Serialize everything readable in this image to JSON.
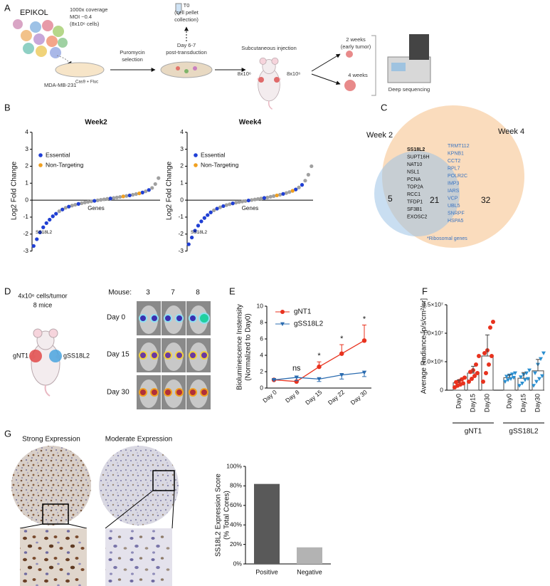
{
  "panel_labels": [
    "A",
    "B",
    "C",
    "D",
    "E",
    "F",
    "G"
  ],
  "panel_a": {
    "library": "EPIKOL",
    "coverage": [
      "1000x coverage",
      "MOI ~0.4",
      "(8x10⁶ cells)"
    ],
    "cell_line": "MDA-MB-231",
    "cell_line_sup": "Cas9 + Fluc",
    "selection": [
      "Puromycin",
      "selection"
    ],
    "t0": [
      "T0",
      "(cell pellet",
      "collection)"
    ],
    "day": [
      "Day 6-7",
      "post-transduction"
    ],
    "injection": "Subcutaneous injection",
    "cells": [
      "8x10⁶",
      "8x10⁶"
    ],
    "early": [
      "2 weeks",
      "(early tumor)"
    ],
    "late": "4 weeks",
    "sequencing": "Deep sequencing"
  },
  "panel_c": {
    "sets": [
      "Week 2",
      "Week 4"
    ],
    "counts": [
      5,
      21,
      32
    ],
    "shared_genes": [
      "SS18L2",
      "SUPT16H",
      "NAT10",
      "NSL1",
      "PCNA",
      "TOP2A",
      "RCC1",
      "TFDP1",
      "SF3B1",
      "EXOSC2"
    ],
    "ribosomal_genes": [
      "TRMT112",
      "KPNB1",
      "CCT2",
      "RPL7",
      "POLR2C",
      "IMP3",
      "IARS",
      "VCP",
      "UBL5",
      "SNRPF",
      "HSPA5"
    ],
    "note": "*Ribosomal genes"
  },
  "panel_d": {
    "cells": "4x10⁶ cells/tumor",
    "mice": "8 mice",
    "groups": [
      "gNT1",
      "gSS18L2"
    ],
    "mouse_label": "Mouse:",
    "mouse_ids": [
      3,
      7,
      8
    ],
    "days": [
      "Day 0",
      "Day 15",
      "Day 30"
    ]
  },
  "panel_g": {
    "titles": [
      "Strong Expression",
      "Moderate Expression"
    ]
  },
  "chart_data": [
    {
      "type": "scatter",
      "title": "Week2",
      "x_label": "Genes",
      "y_label": "Log2 Fold Change",
      "categories": [
        null,
        null,
        null,
        null,
        null,
        null,
        null,
        null,
        null,
        null,
        null,
        null,
        null,
        null,
        null,
        null,
        null,
        null,
        null,
        null,
        null,
        null,
        null,
        null,
        null,
        null,
        null,
        null,
        null,
        null,
        null,
        null,
        null,
        null,
        null,
        null,
        null,
        null,
        null,
        null
      ],
      "values": [
        -2.7,
        -2.3,
        -1.9,
        -1.6,
        -1.35,
        -1.15,
        -0.95,
        -0.8,
        -0.65,
        -0.55,
        -0.45,
        -0.38,
        -0.32,
        -0.27,
        -0.22,
        -0.18,
        -0.14,
        -0.1,
        -0.07,
        -0.04,
        -0.01,
        0.02,
        0.05,
        0.08,
        0.1,
        0.13,
        0.16,
        0.19,
        0.22,
        0.25,
        0.28,
        0.32,
        0.36,
        0.4,
        0.45,
        0.52,
        0.6,
        0.72,
        0.95,
        1.3
      ],
      "color": "#a0a0a0",
      "series": [
        {
          "name": "Essential",
          "color": "#1f3fd6",
          "values": [
            -2.7,
            -2.3,
            -1.9,
            -1.6,
            -1.35,
            -1.15,
            -0.95,
            -0.8,
            null,
            -0.55,
            null,
            -0.38,
            null,
            null,
            -0.22,
            null,
            null,
            null,
            null,
            -0.04,
            null,
            null,
            null,
            null,
            0.1,
            null,
            null,
            null,
            null,
            null,
            0.28,
            null,
            null,
            null,
            0.45,
            null,
            0.6,
            null,
            null,
            null
          ]
        },
        {
          "name": "Non-Targeting",
          "color": "#f0a020",
          "values": [
            null,
            null,
            null,
            null,
            null,
            null,
            null,
            null,
            null,
            null,
            null,
            null,
            null,
            null,
            null,
            null,
            null,
            null,
            null,
            null,
            null,
            null,
            null,
            null,
            null,
            null,
            null,
            null,
            0.22,
            null,
            null,
            null,
            null,
            0.4,
            null,
            null,
            null,
            null,
            null,
            null
          ]
        }
      ],
      "ylim": [
        -3.1,
        4.2
      ],
      "yticks": [
        -3,
        -2,
        -1,
        0,
        1,
        2,
        3,
        4
      ],
      "legend": "upper left",
      "annotations": [
        "SS18L2"
      ]
    },
    {
      "type": "scatter",
      "title": "Week4",
      "x_label": "Genes",
      "y_label": "Log2 Fold Change",
      "categories": [
        null,
        null,
        null,
        null,
        null,
        null,
        null,
        null,
        null,
        null,
        null,
        null,
        null,
        null,
        null,
        null,
        null,
        null,
        null,
        null,
        null,
        null,
        null,
        null,
        null,
        null,
        null,
        null,
        null,
        null,
        null,
        null,
        null,
        null,
        null,
        null,
        null,
        null,
        null,
        null
      ],
      "values": [
        -2.6,
        -2.2,
        -1.8,
        -1.5,
        -1.25,
        -1.05,
        -0.88,
        -0.72,
        -0.6,
        -0.5,
        -0.42,
        -0.35,
        -0.29,
        -0.24,
        -0.19,
        -0.15,
        -0.11,
        -0.08,
        -0.05,
        -0.02,
        0.01,
        0.04,
        0.07,
        0.1,
        0.13,
        0.16,
        0.2,
        0.24,
        0.28,
        0.32,
        0.37,
        0.42,
        0.48,
        0.55,
        0.63,
        0.75,
        0.9,
        1.15,
        1.5,
        2.0
      ],
      "color": "#a0a0a0",
      "series": [
        {
          "name": "Essential",
          "color": "#1f3fd6",
          "values": [
            -2.6,
            -2.2,
            -1.8,
            -1.5,
            -1.25,
            -1.05,
            -0.88,
            -0.72,
            null,
            -0.5,
            null,
            -0.35,
            null,
            null,
            -0.19,
            null,
            null,
            null,
            null,
            -0.02,
            null,
            null,
            null,
            null,
            0.13,
            null,
            null,
            null,
            null,
            null,
            0.37,
            null,
            null,
            null,
            0.63,
            null,
            0.9,
            null,
            null,
            null
          ]
        },
        {
          "name": "Non-Targeting",
          "color": "#f0a020",
          "values": [
            null,
            null,
            null,
            null,
            null,
            null,
            null,
            null,
            null,
            null,
            null,
            null,
            null,
            null,
            null,
            null,
            null,
            null,
            null,
            null,
            null,
            null,
            null,
            null,
            null,
            null,
            null,
            null,
            0.28,
            null,
            null,
            null,
            null,
            0.55,
            null,
            null,
            null,
            null,
            null,
            null
          ]
        }
      ],
      "ylim": [
        -3.1,
        4.2
      ],
      "yticks": [
        -3,
        -2,
        -1,
        0,
        1,
        2,
        3,
        4
      ],
      "legend": "upper left",
      "annotations": [
        "SS18L2"
      ]
    },
    {
      "type": "line",
      "categories": [
        "Day 0",
        "Day 8",
        "Day 15",
        "Day 22",
        "Day 30"
      ],
      "series": [
        {
          "name": "gNT1",
          "color": "#e8321e",
          "marker": "circle",
          "values": [
            1,
            0.8,
            2.6,
            4.2,
            5.8
          ],
          "errors": [
            0,
            0.1,
            0.6,
            1.1,
            1.9
          ]
        },
        {
          "name": "gSS18L2",
          "color": "#2b6cb0",
          "marker": "triangle-down",
          "values": [
            1,
            1.3,
            1.1,
            1.6,
            1.9
          ],
          "errors": [
            0,
            0.4,
            0.3,
            0.5,
            0.5
          ]
        }
      ],
      "ylim": [
        0,
        10
      ],
      "yticks": [
        0,
        2,
        4,
        6,
        8,
        10
      ],
      "y_label": [
        "Bioluminescence Instensity",
        "(Normalized to Day0)"
      ],
      "annotations": [
        "ns",
        "*",
        "*",
        "*"
      ],
      "legend": "upper left"
    },
    {
      "type": "bar",
      "categories": [
        "Day0",
        "Day15",
        "Day30"
      ],
      "series": [
        {
          "name": "gNT1",
          "color": "#e8321e",
          "marker": "circle",
          "values": [
            1300000,
            3000000,
            6000000
          ],
          "errors": [
            500000,
            1200000,
            3700000
          ],
          "points": [
            [
              500000,
              800000,
              1000000,
              1200000,
              1400000,
              1600000,
              1900000,
              2200000
            ],
            [
              1500000,
              2000000,
              2500000,
              3000000,
              3200000,
              3500000,
              4500000,
              6000000
            ],
            [
              1500000,
              3000000,
              4500000,
              6000000,
              6500000,
              7000000,
              11000000,
              12000000
            ]
          ]
        },
        {
          "name": "gSS18L2",
          "color": "#2b8fd0",
          "marker": "triangle-down",
          "values": [
            2200000,
            2100000,
            3400000
          ],
          "errors": [
            500000,
            1000000,
            2000000
          ],
          "points": [
            [
              1500000,
              1800000,
              2000000,
              2200000,
              2400000,
              2600000,
              2800000,
              3000000
            ],
            [
              800000,
              1200000,
              1800000,
              2000000,
              2300000,
              2700000,
              3000000,
              3500000
            ],
            [
              800000,
              1500000,
              2000000,
              2500000,
              3000000,
              4500000,
              5500000,
              6500000
            ]
          ]
        }
      ],
      "ylim": [
        0,
        15500000
      ],
      "yticks": [
        0,
        {
          "value": 5000000,
          "label": "5.0×10⁶"
        },
        {
          "value": 10000000,
          "label": "1.0×10⁷"
        },
        {
          "value": 15000000,
          "label": "1.5×10⁷"
        }
      ],
      "y_label": "Average Radiance [p/s/cm²/sr]"
    },
    {
      "type": "bar",
      "categories": [
        "Positive",
        "Negative"
      ],
      "values": [
        82,
        17
      ],
      "colors": [
        "#595959",
        "#b3b3b3"
      ],
      "ylim": [
        0,
        100
      ],
      "yticks": [
        {
          "value": 0,
          "label": "0%"
        },
        {
          "value": 20,
          "label": "20%"
        },
        {
          "value": 40,
          "label": "40%"
        },
        {
          "value": 60,
          "label": "60%"
        },
        {
          "value": 80,
          "label": "80%"
        },
        {
          "value": 100,
          "label": "100%"
        }
      ],
      "y_label": [
        "SS18L2 Expression Score",
        "(% Total Cores)"
      ]
    }
  ]
}
